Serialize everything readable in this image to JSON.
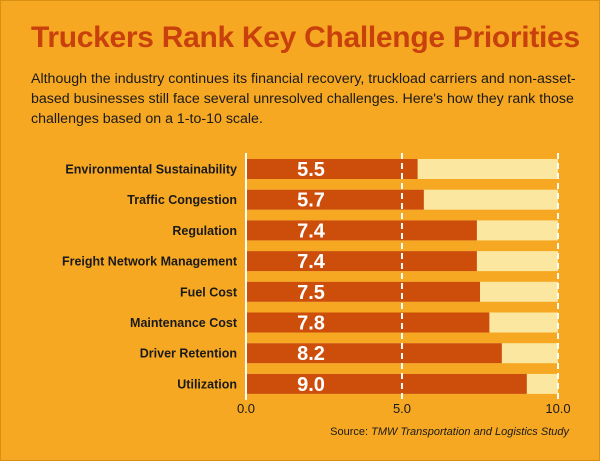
{
  "header": {
    "title": "Truckers Rank Key Challenge Priorities",
    "subtitle": "Although the industry continues its financial recovery, truckload carriers and non-asset-based businesses still face several unresolved challenges. Here's how they rank those challenges based on a 1-to-10 scale."
  },
  "footer": {
    "source_prefix": "Source:",
    "source_name": "TMW Transportation and Logistics Study"
  },
  "colors": {
    "background": "#f7a822",
    "bar": "#cc4e0a",
    "track": "#fbe7a0",
    "title": "#c8410c",
    "gridline": "#ffffff"
  },
  "chart_data": {
    "type": "bar",
    "orientation": "horizontal",
    "categories": [
      "Environmental Sustainability",
      "Traffic Congestion",
      "Regulation",
      "Freight Network Management",
      "Fuel Cost",
      "Maintenance Cost",
      "Driver Retention",
      "Utilization"
    ],
    "values": [
      5.5,
      5.7,
      7.4,
      7.4,
      7.5,
      7.8,
      8.2,
      9.0
    ],
    "value_labels": [
      "5.5",
      "5.7",
      "7.4",
      "7.4",
      "7.5",
      "7.8",
      "8.2",
      "9.0"
    ],
    "xlim": [
      0,
      10
    ],
    "xticks": [
      0,
      5,
      10
    ],
    "xtick_labels": [
      "0.0",
      "5.0",
      "10.0"
    ],
    "grid": "dashed vertical at 5.0 and 10.0"
  }
}
